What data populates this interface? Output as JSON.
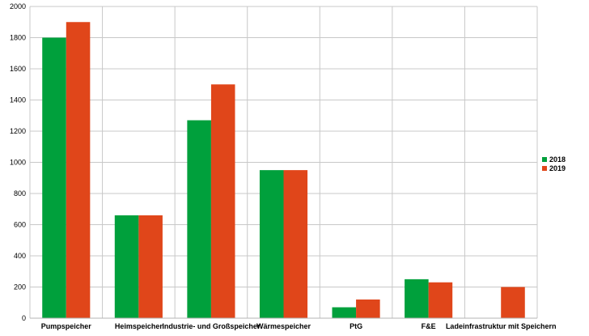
{
  "chart_data": {
    "type": "bar",
    "categories": [
      "Pumpspeicher",
      "Heimspeicher",
      "Industrie- und Großspeicher",
      "Wärmespeicher",
      "PtG",
      "F&E",
      "Ladeinfrastruktur mit Speichern"
    ],
    "series": [
      {
        "name": "2018",
        "color": "#00a03c",
        "values": [
          1800,
          660,
          1270,
          950,
          70,
          250,
          0
        ]
      },
      {
        "name": "2019",
        "color": "#e0461a",
        "values": [
          1900,
          660,
          1500,
          950,
          120,
          230,
          200
        ]
      }
    ],
    "ylim": [
      0,
      2000
    ],
    "yticks": [
      0,
      200,
      400,
      600,
      800,
      1000,
      1200,
      1400,
      1600,
      1800,
      2000
    ],
    "grid": true,
    "legend": "right"
  }
}
